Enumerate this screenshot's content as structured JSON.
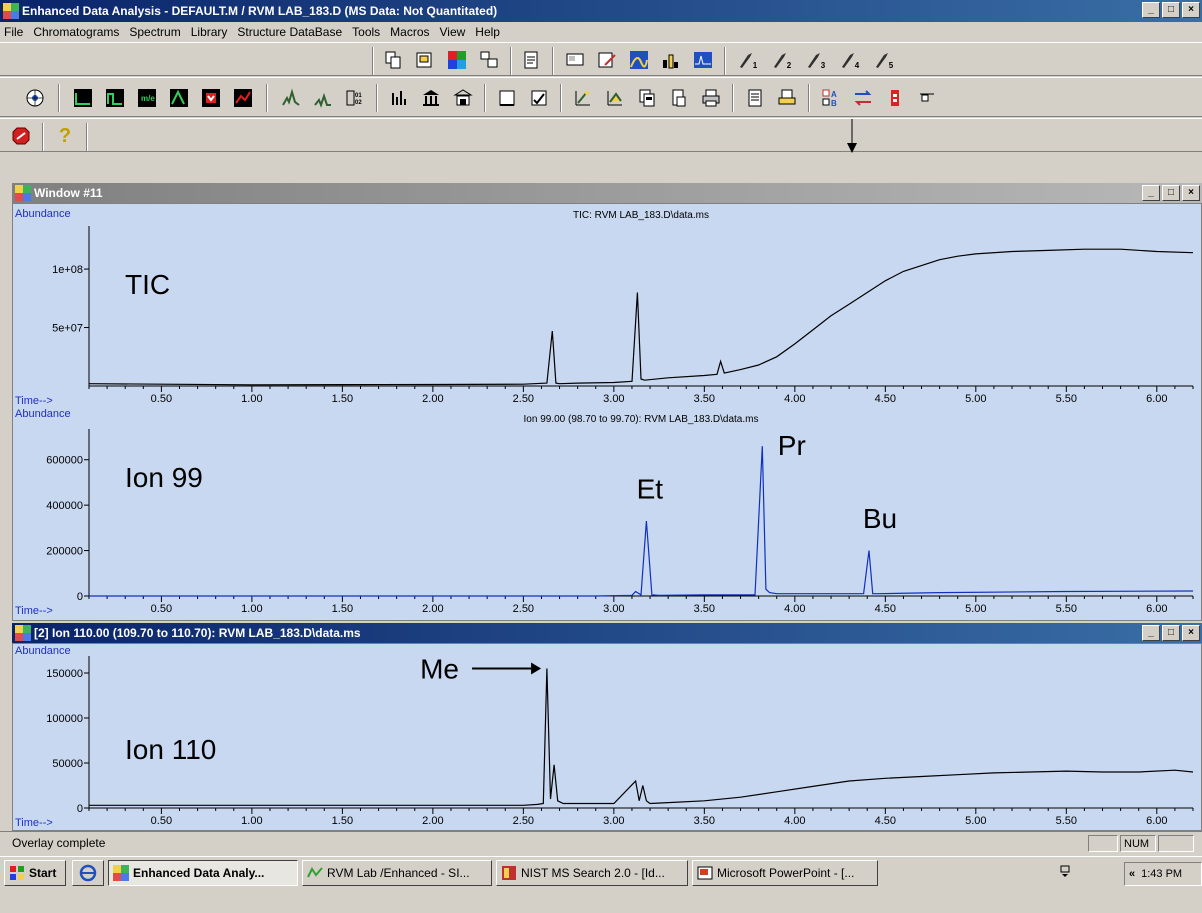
{
  "window": {
    "title": "Enhanced Data Analysis - DEFAULT.M / RVM LAB_183.D    (MS Data: Not Quantitated)",
    "minimize": "_",
    "maximize": "□",
    "close": "×"
  },
  "menu": [
    "File",
    "Chromatograms",
    "Spectrum",
    "Library",
    "Structure DataBase",
    "Tools",
    "Macros",
    "View",
    "Help"
  ],
  "toolbar_macros": [
    "1",
    "2",
    "3",
    "4",
    "5"
  ],
  "toolbar_help_label": "?",
  "window11": {
    "title": "Window #11"
  },
  "window2": {
    "title": "[2] Ion 110.00 (109.70 to 110.70): RVM LAB_183.D\\data.ms"
  },
  "status": {
    "text": "Overlay complete",
    "num": "NUM"
  },
  "taskbar": {
    "start": "Start",
    "tasks": [
      "Enhanced Data Analy...",
      "RVM Lab /Enhanced - SI...",
      "NIST MS Search 2.0 - [Id...",
      "Microsoft PowerPoint - [..."
    ],
    "tray_arrow": "«",
    "time": "1:43 PM"
  },
  "chart_data": [
    {
      "type": "line",
      "title": "TIC: RVM LAB_183.D\\data.ms",
      "label": "TIC",
      "ylabel": "Abundance",
      "xlabel": "Time-->",
      "xlim": [
        0.1,
        6.2
      ],
      "ylim": [
        0,
        130000000
      ],
      "xticks": [
        "0.50",
        "1.00",
        "1.50",
        "2.00",
        "2.50",
        "3.00",
        "3.50",
        "4.00",
        "4.50",
        "5.00",
        "5.50",
        "6.00"
      ],
      "yticks": [
        {
          "v": 50000000,
          "t": "5e+07"
        },
        {
          "v": 100000000,
          "t": "1e+08"
        }
      ],
      "x": [
        0.1,
        0.5,
        1.0,
        1.5,
        2.0,
        2.5,
        2.63,
        2.66,
        2.68,
        2.7,
        2.8,
        3.0,
        3.1,
        3.13,
        3.15,
        3.17,
        3.3,
        3.5,
        3.57,
        3.59,
        3.61,
        3.7,
        3.8,
        3.9,
        4.0,
        4.1,
        4.2,
        4.3,
        4.4,
        4.5,
        4.6,
        4.7,
        4.8,
        4.9,
        5.0,
        5.2,
        5.4,
        5.6,
        5.8,
        6.0,
        6.2
      ],
      "y": [
        2000000,
        1500000,
        1000000,
        1200000,
        1300000,
        1500000,
        2500000,
        47000000,
        2500000,
        2000000,
        2500000,
        3000000,
        4000000,
        80000000,
        6000000,
        5000000,
        7000000,
        9000000,
        10000000,
        21000000,
        11000000,
        14000000,
        18000000,
        25000000,
        36000000,
        48000000,
        60000000,
        70000000,
        80000000,
        90000000,
        98000000,
        103000000,
        108000000,
        111000000,
        113000000,
        115000000,
        116000000,
        117000000,
        117000000,
        115000000,
        114000000
      ]
    },
    {
      "type": "line",
      "title": "Ion 99.00 (98.70 to 99.70): RVM LAB_183.D\\data.ms",
      "label": "Ion 99",
      "ylabel": "Abundance",
      "xlabel": "Time-->",
      "xlim": [
        0.1,
        6.2
      ],
      "ylim": [
        0,
        700000
      ],
      "xticks": [
        "0.50",
        "1.00",
        "1.50",
        "2.00",
        "2.50",
        "3.00",
        "3.50",
        "4.00",
        "4.50",
        "5.00",
        "5.50",
        "6.00"
      ],
      "yticks": [
        {
          "v": 0,
          "t": "0"
        },
        {
          "v": 200000,
          "t": "200000"
        },
        {
          "v": 400000,
          "t": "400000"
        },
        {
          "v": 600000,
          "t": "600000"
        }
      ],
      "annotations": [
        {
          "text": "Et",
          "x": 3.17,
          "y": 430000
        },
        {
          "text": "Pr",
          "x": 3.95,
          "y": 620000
        },
        {
          "text": "Bu",
          "x": 4.42,
          "y": 300000
        }
      ],
      "x": [
        0.1,
        1.0,
        2.0,
        2.9,
        3.1,
        3.12,
        3.15,
        3.18,
        3.21,
        3.25,
        3.5,
        3.78,
        3.82,
        3.84,
        3.86,
        3.9,
        4.2,
        4.38,
        4.41,
        4.43,
        4.46,
        4.8,
        5.5,
        6.2
      ],
      "y": [
        0,
        0,
        0,
        0,
        3000,
        20000,
        5000,
        330000,
        5000,
        3000,
        5000,
        5000,
        660000,
        30000,
        15000,
        10000,
        10000,
        10000,
        200000,
        10000,
        10000,
        15000,
        20000,
        22000
      ]
    },
    {
      "type": "line",
      "title": "",
      "label": "Ion 110",
      "ylabel": "Abundance",
      "xlabel": "Time-->",
      "xlim": [
        0.1,
        6.2
      ],
      "ylim": [
        0,
        160000
      ],
      "xticks": [
        "0.50",
        "1.00",
        "1.50",
        "2.00",
        "2.50",
        "3.00",
        "3.50",
        "4.00",
        "4.50",
        "5.00",
        "5.50",
        "6.00"
      ],
      "yticks": [
        {
          "v": 0,
          "t": "0"
        },
        {
          "v": 50000,
          "t": "50000"
        },
        {
          "v": 100000,
          "t": "100000"
        },
        {
          "v": 150000,
          "t": "150000"
        }
      ],
      "annotations": [
        {
          "text": "Me",
          "x": 2.62,
          "y": 155000,
          "arrow": true
        }
      ],
      "x": [
        0.1,
        1.0,
        2.0,
        2.5,
        2.58,
        2.61,
        2.63,
        2.65,
        2.67,
        2.69,
        2.72,
        3.0,
        3.12,
        3.14,
        3.16,
        3.18,
        3.2,
        3.3,
        3.5,
        3.7,
        3.9,
        4.1,
        4.3,
        4.5,
        4.7,
        4.9,
        5.1,
        5.3,
        5.5,
        5.7,
        5.9,
        6.1,
        6.2
      ],
      "y": [
        3000,
        3000,
        3000,
        3000,
        4000,
        5000,
        155000,
        10000,
        48000,
        8000,
        5000,
        5000,
        30000,
        8000,
        25000,
        8000,
        5000,
        6000,
        8000,
        12000,
        18000,
        24000,
        30000,
        33000,
        35000,
        37000,
        39000,
        40000,
        41000,
        40000,
        40000,
        42000,
        40000
      ]
    }
  ]
}
